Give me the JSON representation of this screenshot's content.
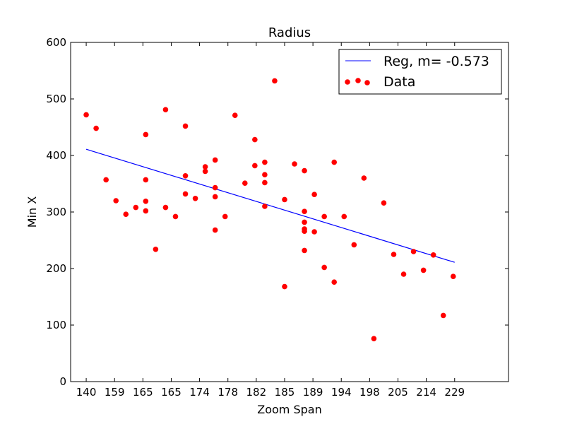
{
  "chart_data": {
    "type": "scatter",
    "title": "Radius",
    "xlabel": "Zoom Span",
    "ylabel": "Min X",
    "x_tick_labels": [
      "140",
      "159",
      "165",
      "165",
      "174",
      "178",
      "182",
      "185",
      "189",
      "194",
      "198",
      "205",
      "214",
      "229"
    ],
    "y_ticks": [
      0,
      100,
      200,
      300,
      400,
      500,
      600
    ],
    "ylim": [
      0,
      600
    ],
    "x_index_range": [
      -0.55,
      14.9
    ],
    "grid": false,
    "legend_position": "top-right",
    "legend": [
      "Reg, m= -0.573",
      "Data"
    ],
    "series": [
      {
        "name": "Reg, m= -0.573",
        "type": "line",
        "color": "#0000ff",
        "points": [
          [
            0.0,
            411
          ],
          [
            13.0,
            211
          ]
        ]
      },
      {
        "name": "Data",
        "type": "scatter",
        "color": "#ff0000",
        "points": [
          [
            0.0,
            472
          ],
          [
            0.35,
            448
          ],
          [
            0.7,
            357
          ],
          [
            1.05,
            320
          ],
          [
            1.4,
            296
          ],
          [
            1.75,
            308
          ],
          [
            2.1,
            437
          ],
          [
            2.1,
            357
          ],
          [
            2.1,
            319
          ],
          [
            2.1,
            302
          ],
          [
            2.45,
            234
          ],
          [
            2.8,
            481
          ],
          [
            2.8,
            308
          ],
          [
            3.15,
            292
          ],
          [
            3.5,
            452
          ],
          [
            3.5,
            364
          ],
          [
            3.5,
            332
          ],
          [
            3.85,
            324
          ],
          [
            4.2,
            380
          ],
          [
            4.2,
            372
          ],
          [
            4.55,
            392
          ],
          [
            4.55,
            343
          ],
          [
            4.55,
            327
          ],
          [
            4.55,
            268
          ],
          [
            4.9,
            292
          ],
          [
            5.25,
            471
          ],
          [
            5.6,
            351
          ],
          [
            5.95,
            428
          ],
          [
            5.95,
            382
          ],
          [
            6.3,
            388
          ],
          [
            6.3,
            366
          ],
          [
            6.3,
            352
          ],
          [
            6.3,
            310
          ],
          [
            6.65,
            532
          ],
          [
            7.0,
            322
          ],
          [
            7.0,
            168
          ],
          [
            7.35,
            385
          ],
          [
            7.7,
            373
          ],
          [
            7.7,
            301
          ],
          [
            7.7,
            282
          ],
          [
            7.7,
            270
          ],
          [
            7.7,
            266
          ],
          [
            7.7,
            232
          ],
          [
            8.05,
            331
          ],
          [
            8.05,
            265
          ],
          [
            8.4,
            292
          ],
          [
            8.4,
            202
          ],
          [
            8.75,
            388
          ],
          [
            8.75,
            176
          ],
          [
            9.1,
            292
          ],
          [
            9.45,
            242
          ],
          [
            9.8,
            360
          ],
          [
            10.15,
            76
          ],
          [
            10.5,
            316
          ],
          [
            10.85,
            225
          ],
          [
            11.2,
            190
          ],
          [
            11.55,
            230
          ],
          [
            11.9,
            197
          ],
          [
            12.25,
            224
          ],
          [
            12.6,
            117
          ],
          [
            12.95,
            186
          ]
        ]
      }
    ]
  }
}
